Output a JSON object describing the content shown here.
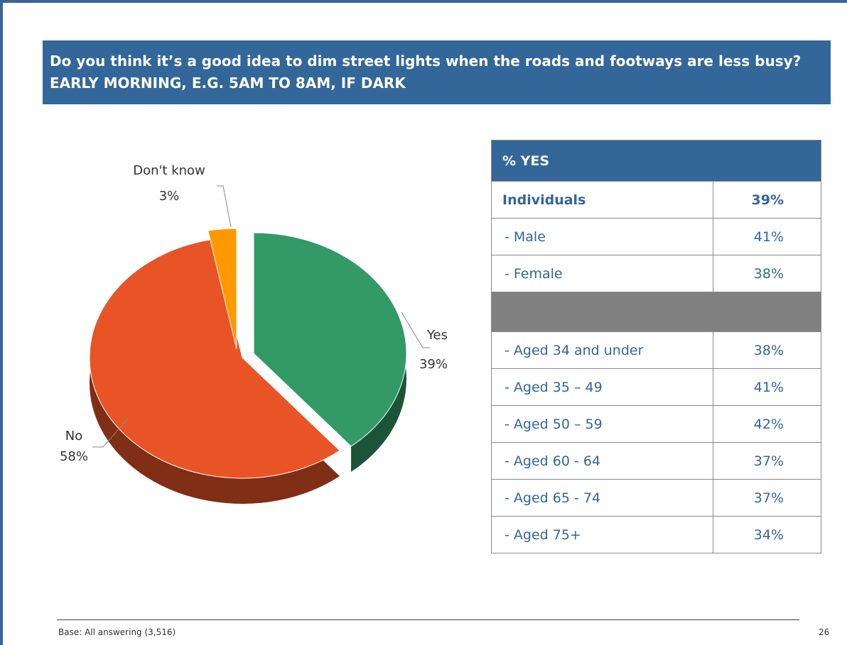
{
  "title": "Do you think it’s a good idea to dim street lights when the roads and footways are less busy? EARLY MORNING, E.G. 5AM TO 8AM, IF DARK",
  "chart_data": {
    "type": "pie",
    "slices": [
      {
        "label": "Yes",
        "value": 39,
        "value_label": "39%",
        "color": "#339966"
      },
      {
        "label": "No",
        "value": 58,
        "value_label": "58%",
        "color": "#e85426"
      },
      {
        "label": "Don't know",
        "value": 3,
        "value_label": "3%",
        "color": "#ff9900"
      }
    ]
  },
  "table": {
    "header": "% YES",
    "rows": [
      {
        "label": "Individuals",
        "value": "39%",
        "bold": true
      },
      {
        "label": " - Male",
        "value": "41%"
      },
      {
        "label": " - Female",
        "value": "38%"
      },
      {
        "spacer": true
      },
      {
        "label": " - Aged 34 and under",
        "value": "38%"
      },
      {
        "label": " - Aged 35 – 49",
        "value": "41%"
      },
      {
        "label": " - Aged 50 – 59",
        "value": "42%"
      },
      {
        "label": " - Aged 60 - 64",
        "value": "37%"
      },
      {
        "label": " - Aged 65 - 74",
        "value": "37%"
      },
      {
        "label": " - Aged 75+",
        "value": "34%"
      }
    ]
  },
  "footer": {
    "base": "Base: All answering (3,516)",
    "page_number": "26"
  }
}
